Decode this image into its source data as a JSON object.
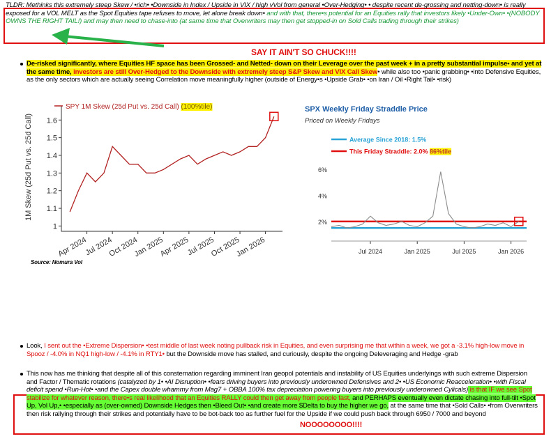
{
  "tldr": [
    {
      "text": "TLDR: Methinks this extremely steep Skew / •rich• •Downside in Index / Upside in VIX / high vVol from general •Over-Hedging• •  despite recent de-grossing and netting-down•  is really exposed for a VOL MELT as the Spot Equities tape refuses to move, let alone break down•",
      "color": "#000000",
      "italic": true
    },
    {
      "text": "  and with that, there•s potential for an Equities rally that investors likely •Under-Own• •(NOBODY OWNS THE RIGHT TAIL!) and may then need to chase-into (at same time that Overwriters may then get stopped-in on Sold Calls trading through their strikes)",
      "color": "#1a9a3a",
      "italic": true
    }
  ],
  "exclaim": "SAY IT AIN'T SO CHUCK!!!!",
  "bullet1": [
    {
      "text": "De-risked significantly, where Equities HF space has been Grossed- and Netted- down on their Leverage over the past week + in a pretty substantial impulse•  and yet at the same time, ",
      "color": "#000000",
      "highlight": "#fff200",
      "bold": true
    },
    {
      "text": "investors are still Over-Hedged to the Downside with extremely steep S&P Skew and VIX Call Skew",
      "color": "#e01010",
      "highlight": "#fff200",
      "bold": true
    },
    {
      "text": "•  while also too •panic grabbing• •into Defensive Equities, as the only sectors which are actually seeing Correlation move meaningfully higher (outside of Energy•s •Upside Grab• •on Iran / Oil •Right Tail• •risk)",
      "color": "#000000"
    }
  ],
  "chart_data": [
    {
      "type": "line",
      "title": "SPY 1M Skew (25d Put vs. 25d Call)",
      "title_highlight": "(100%tile)",
      "ylabel": "1M Skew (25d Put vs. 25d Call)",
      "x": [
        "2024-02",
        "2024-03",
        "2024-04",
        "2024-05",
        "2024-06",
        "2024-07",
        "2024-08",
        "2024-09",
        "2024-10",
        "2024-11",
        "2024-12",
        "2025-01",
        "2025-02",
        "2025-03",
        "2025-04",
        "2025-05",
        "2025-06",
        "2025-07",
        "2025-08",
        "2025-09",
        "2025-10",
        "2025-11",
        "2025-12",
        "2026-01",
        "2026-02"
      ],
      "series": [
        {
          "name": "SPY 1M Skew (25d Put vs. 25d Call)",
          "color": "#b22222",
          "values": [
            1.08,
            1.2,
            1.3,
            1.25,
            1.3,
            1.45,
            1.4,
            1.35,
            1.35,
            1.3,
            1.3,
            1.32,
            1.35,
            1.38,
            1.4,
            1.35,
            1.38,
            1.4,
            1.42,
            1.4,
            1.42,
            1.45,
            1.45,
            1.5,
            1.62
          ]
        }
      ],
      "xlim": [
        "2024-01",
        "2026-03"
      ],
      "ylim": [
        0.97,
        1.68
      ],
      "yticks": [
        1,
        1.1,
        1.2,
        1.3,
        1.4,
        1.5,
        1.6
      ],
      "xticks": [
        {
          "value": "2024-04",
          "label": "Apr 2024"
        },
        {
          "value": "2024-07",
          "label": "Jul 2024"
        },
        {
          "value": "2024-10",
          "label": "Oct 2024"
        },
        {
          "value": "2025-01",
          "label": "Jan 2025"
        },
        {
          "value": "2025-04",
          "label": "Apr 2025"
        },
        {
          "value": "2025-07",
          "label": "Jul 2025"
        },
        {
          "value": "2025-10",
          "label": "Oct 2025"
        },
        {
          "value": "2026-01",
          "label": "Jan 2026"
        }
      ]
    },
    {
      "type": "line",
      "title": "SPX Weekly Friday Straddle Price",
      "subtitle": "Priced on Weekly Fridays",
      "x": [
        "2024-02",
        "2024-03",
        "2024-04",
        "2024-05",
        "2024-06",
        "2024-07",
        "2024-08",
        "2024-09",
        "2024-10",
        "2024-11",
        "2024-12",
        "2025-01",
        "2025-02",
        "2025-03",
        "2025-04",
        "2025-05",
        "2025-06",
        "2025-07",
        "2025-08",
        "2025-09",
        "2025-10",
        "2025-11",
        "2025-12",
        "2026-01",
        "2026-02"
      ],
      "series": [
        {
          "name": "SPX Weekly Friday Straddle",
          "color": "#8c8c8c",
          "values": [
            1.6,
            1.7,
            1.5,
            1.6,
            1.8,
            2.4,
            1.9,
            1.7,
            1.8,
            2.0,
            1.7,
            1.6,
            1.9,
            2.4,
            5.8,
            2.6,
            1.8,
            1.6,
            1.5,
            1.6,
            1.8,
            1.7,
            1.9,
            1.6,
            2.0
          ]
        }
      ],
      "reference_lines": [
        {
          "name": "Average Since 2018: 1.5%",
          "value": 1.5,
          "color": "#2aa3d6"
        },
        {
          "name": "This Friday Straddle: 2.0%",
          "value": 2.0,
          "color": "#e01010",
          "highlight_label": "86%tile"
        }
      ],
      "xlim": [
        "2024-02",
        "2026-03"
      ],
      "ylim": [
        0.5,
        7
      ],
      "yticks": [
        {
          "value": 2,
          "label": "2%"
        },
        {
          "value": 4,
          "label": "4%"
        },
        {
          "value": 6,
          "label": "6%"
        }
      ],
      "xticks": [
        {
          "value": "2024-07",
          "label": "Jul 2024"
        },
        {
          "value": "2025-01",
          "label": "Jan 2025"
        },
        {
          "value": "2025-07",
          "label": "Jul 2025"
        },
        {
          "value": "2026-01",
          "label": "Jan 2026"
        }
      ]
    }
  ],
  "source": "Source: Nomura Vol",
  "bullet2": [
    {
      "text": "Look, ",
      "color": "#000000"
    },
    {
      "text": "I sent out the •Extreme Dispersion• •test middle of last week noting pullback risk in Equities, and even surprising me that within a week, we got a -3.1% high-low move in Spooz / -4.0% in NQ1 high-low / -4.1% in RTY1•",
      "color": "#e01010"
    },
    {
      "text": "  but the Downside move has stalled, and curiously, despite the ongoing Deleveraging and Hedge -grab",
      "color": "#000000"
    }
  ],
  "bullet3": [
    {
      "text": "This now has me thinking that despite all of this consternation regarding imminent Iran geopol potentials and instability of US Equities underlyings with such extreme Dispersion and Factor / Thematic rotations ",
      "color": "#000000"
    },
    {
      "text": "(catalyzed by 1•  •AI Disruption• •fears driving buyers into previously underowned Defensives and 2•  •US Economic Reacceleration• •with Fiscal deficit spend •Run-Hot• •and the Capex double whammy from Mag7 + OBBA 100% tax depreciation powering buyers into previously underowned Cylicals)",
      "color": "#000000",
      "italic": true
    },
    {
      "text": "  is that IF we see Spot stabilize for whatever reason, there•s real likelihood that an Equities RALLY could then get away from people fast, ",
      "color": "#e01010",
      "highlight": "#66ff33"
    },
    {
      "text": "and PERHAPS eventually even dictate chasing into full-tilt •Spot Up, Vol Up,• •especially as (over-owned) Downside Hedges then •Bleed Out• •and create more $Delta to buy the higher we go,",
      "color": "#000000",
      "highlight": "#66ff33"
    },
    {
      "text": "  at the same time that •Sold Calls• •from Overwriters then risk rallying through their strikes and potentially have to be bot-back too as further fuel for the Upside if we could push back through 6950 / 7000 and beyond",
      "color": "#000000"
    }
  ],
  "closing": "NOOOOOOOO!!!!"
}
